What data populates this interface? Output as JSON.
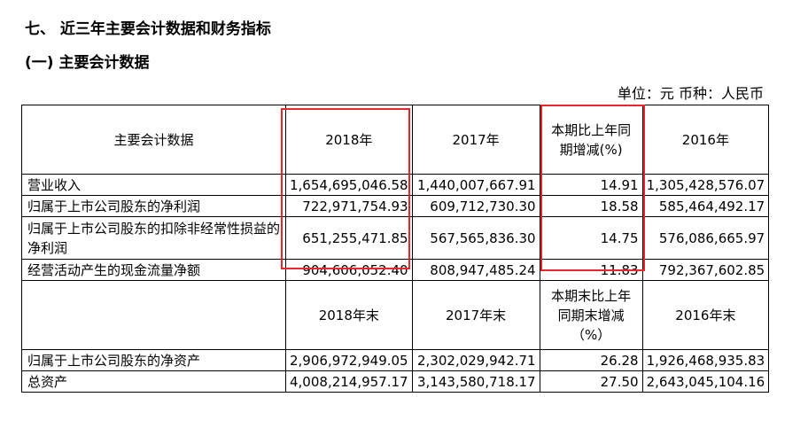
{
  "heading": {
    "section": "七、 近三年主要会计数据和财务指标",
    "subsection": "(一) 主要会计数据"
  },
  "unit_note": "单位：元 币种：人民币",
  "table": {
    "header1": [
      "主要会计数据",
      "2018年",
      "2017年",
      "本期比上年同期增减(%)",
      "2016年"
    ],
    "rows1": [
      [
        "营业收入",
        "1,654,695,046.58",
        "1,440,007,667.91",
        "14.91",
        "1,305,428,576.07"
      ],
      [
        "归属于上市公司股东的净利润",
        "722,971,754.93",
        "609,712,730.30",
        "18.58",
        "585,464,492.17"
      ],
      [
        "归属于上市公司股东的扣除非经常性损益的净利润",
        "651,255,471.85",
        "567,565,836.30",
        "14.75",
        "576,086,665.97"
      ],
      [
        "经营活动产生的现金流量净额",
        "904,606,052.40",
        "808,947,485.24",
        "11.83",
        "792,367,602.85"
      ]
    ],
    "header2": [
      "",
      "2018年末",
      "2017年末",
      "本期末比上年同期末增减（%）",
      "2016年末"
    ],
    "rows2": [
      [
        "归属于上市公司股东的净资产",
        "2,906,972,949.05",
        "2,302,029,942.71",
        "26.28",
        "1,926,468,935.83"
      ],
      [
        "总资产",
        "4,008,214,957.17",
        "3,143,580,718.17",
        "27.50",
        "2,643,045,104.16"
      ]
    ]
  },
  "highlight_color": "#e8272a"
}
